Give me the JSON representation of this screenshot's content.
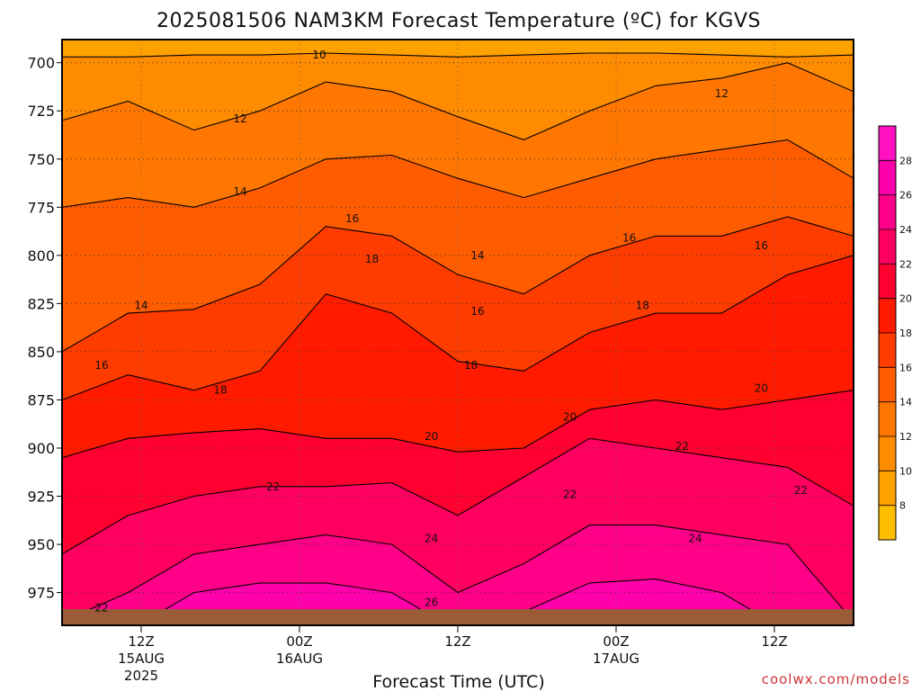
{
  "title": "2025081506 NAM3KM Forecast Temperature (ºC) for KGVS",
  "xlabel": "Forecast Time (UTC)",
  "credit": "coolwx.com/models",
  "chart_data": {
    "type": "heatmap",
    "title": "2025081506 NAM3KM Forecast Temperature (ºC) for KGVS",
    "xlabel": "Forecast Time (UTC)",
    "ylabel": "",
    "y_ticks": [
      "700",
      "725",
      "750",
      "775",
      "800",
      "825",
      "850",
      "875",
      "900",
      "925",
      "950",
      "975"
    ],
    "y_values": [
      700,
      725,
      750,
      775,
      800,
      825,
      850,
      875,
      900,
      925,
      950,
      975
    ],
    "ylim": [
      688,
      992
    ],
    "y_inverted": true,
    "x_ticks": [
      {
        "lines": [
          "12Z",
          "15AUG",
          "2025"
        ]
      },
      {
        "lines": [
          "00Z",
          "16AUG"
        ]
      },
      {
        "lines": [
          "12Z"
        ]
      },
      {
        "lines": [
          "00Z",
          "17AUG"
        ]
      },
      {
        "lines": [
          "12Z"
        ]
      }
    ],
    "x_tick_hours": [
      6,
      18,
      30,
      42,
      54
    ],
    "xlim": [
      0,
      60
    ],
    "grid": true,
    "colorbar_ticks": [
      "8",
      "10",
      "12",
      "14",
      "16",
      "18",
      "20",
      "22",
      "24",
      "26",
      "28"
    ],
    "colorbar_colors": [
      "#ffbe00",
      "#ffa200",
      "#ff8c00",
      "#ff7600",
      "#ff5c00",
      "#ff3c00",
      "#ff1a00",
      "#ff0030",
      "#ff0060",
      "#ff0088",
      "#ff00aa",
      "#ff10c0"
    ],
    "levels": [
      {
        "label": "10",
        "pressure": [
          697,
          697,
          696,
          696,
          695,
          696,
          697,
          696,
          695,
          695,
          696,
          697,
          696
        ]
      },
      {
        "label": "12",
        "pressure": [
          730,
          720,
          735,
          725,
          710,
          715,
          728,
          740,
          725,
          712,
          708,
          700,
          715
        ]
      },
      {
        "label": "14",
        "pressure": [
          775,
          770,
          775,
          765,
          750,
          748,
          760,
          770,
          760,
          750,
          745,
          740,
          760
        ]
      },
      {
        "label": "16",
        "pressure": [
          850,
          830,
          828,
          815,
          785,
          790,
          810,
          820,
          800,
          790,
          790,
          780,
          790
        ]
      },
      {
        "label": "18",
        "pressure": [
          875,
          862,
          870,
          860,
          820,
          830,
          855,
          860,
          840,
          830,
          830,
          810,
          800
        ]
      },
      {
        "label": "20",
        "pressure": [
          905,
          895,
          892,
          890,
          895,
          895,
          902,
          900,
          880,
          875,
          880,
          875,
          870
        ]
      },
      {
        "label": "22",
        "pressure": [
          955,
          935,
          925,
          920,
          920,
          918,
          935,
          915,
          895,
          900,
          905,
          910,
          930
        ]
      },
      {
        "label": "24",
        "pressure": [
          990,
          975,
          955,
          950,
          945,
          950,
          975,
          960,
          940,
          940,
          945,
          950,
          990
        ]
      },
      {
        "label": "26",
        "pressure": [
          995,
          995,
          975,
          970,
          970,
          975,
          995,
          985,
          970,
          968,
          975,
          995,
          995
        ]
      },
      {
        "label": "28",
        "pressure": [
          999,
          999,
          985,
          985,
          999,
          999,
          999,
          999,
          999,
          999,
          999,
          999,
          999
        ]
      }
    ],
    "level_hours": [
      0,
      5,
      10,
      15,
      20,
      25,
      30,
      35,
      40,
      45,
      50,
      55,
      60
    ],
    "contour_labels": [
      {
        "text": "10",
        "hour": 19.5,
        "pressure": 696
      },
      {
        "text": "12",
        "hour": 13.5,
        "pressure": 729
      },
      {
        "text": "12",
        "hour": 50,
        "pressure": 716
      },
      {
        "text": "14",
        "hour": 13.5,
        "pressure": 767
      },
      {
        "text": "14",
        "hour": 6,
        "pressure": 826
      },
      {
        "text": "14",
        "hour": 31.5,
        "pressure": 800
      },
      {
        "text": "16",
        "hour": 22,
        "pressure": 781
      },
      {
        "text": "16",
        "hour": 43,
        "pressure": 791
      },
      {
        "text": "16",
        "hour": 53,
        "pressure": 795
      },
      {
        "text": "16",
        "hour": 3,
        "pressure": 857
      },
      {
        "text": "16",
        "hour": 31.5,
        "pressure": 829
      },
      {
        "text": "18",
        "hour": 23.5,
        "pressure": 802
      },
      {
        "text": "18",
        "hour": 44,
        "pressure": 826
      },
      {
        "text": "18",
        "hour": 12,
        "pressure": 870
      },
      {
        "text": "18",
        "hour": 31,
        "pressure": 857
      },
      {
        "text": "20",
        "hour": 28,
        "pressure": 894
      },
      {
        "text": "20",
        "hour": 38.5,
        "pressure": 884
      },
      {
        "text": "20",
        "hour": 53,
        "pressure": 869
      },
      {
        "text": "22",
        "hour": 16,
        "pressure": 920
      },
      {
        "text": "22",
        "hour": 47,
        "pressure": 899
      },
      {
        "text": "22",
        "hour": 38.5,
        "pressure": 924
      },
      {
        "text": "22",
        "hour": 56,
        "pressure": 922
      },
      {
        "text": "22",
        "hour": 3,
        "pressure": 983
      },
      {
        "text": "24",
        "hour": 28,
        "pressure": 947
      },
      {
        "text": "24",
        "hour": 48,
        "pressure": 947
      },
      {
        "text": "26",
        "hour": 28,
        "pressure": 980
      }
    ],
    "ground_color": "#9b5a38"
  }
}
